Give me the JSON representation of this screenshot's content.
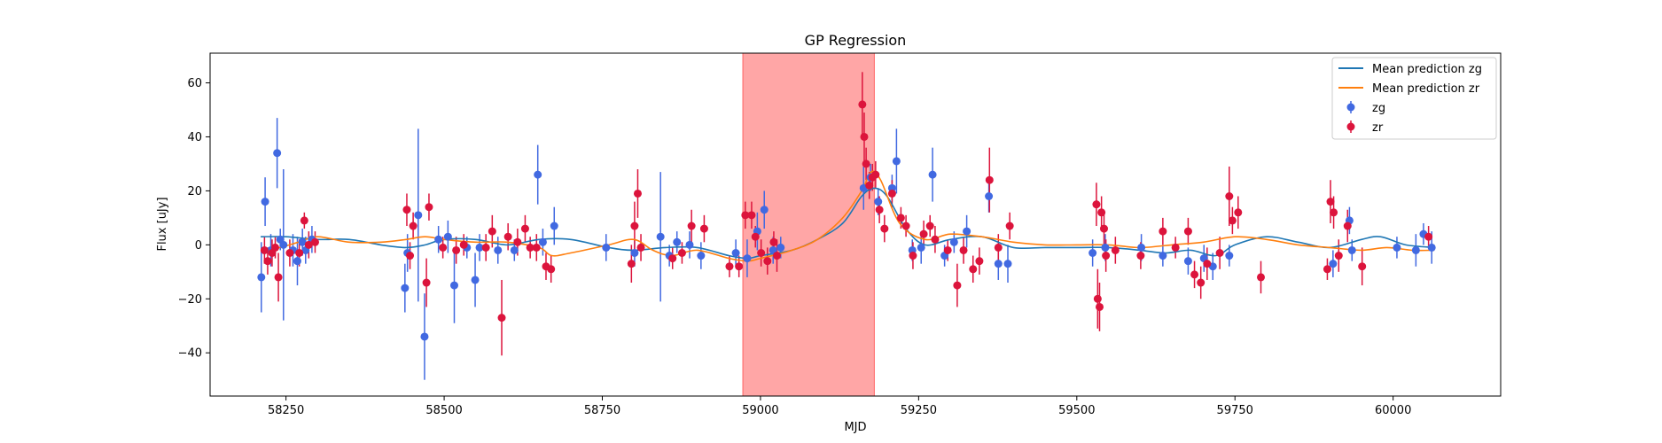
{
  "chart_data": {
    "type": "scatter",
    "title": "GP Regression",
    "xlabel": "MJD",
    "ylabel": "Flux [uJy]",
    "xlim": [
      58130,
      60170
    ],
    "ylim": [
      -56,
      71
    ],
    "xticks": [
      58250,
      58500,
      58750,
      59000,
      59250,
      59500,
      59750,
      60000
    ],
    "yticks": [
      -40,
      -20,
      0,
      20,
      40,
      60
    ],
    "grid": false,
    "legend_position": "top-right",
    "shaded_region": {
      "x_start": 58972,
      "x_end": 59180,
      "color": "#ff0000",
      "alpha": 0.35
    },
    "colors": {
      "zg_points": "#4169e1",
      "zr_points": "#dc143c",
      "zg_line": "#1f77b4",
      "zr_line": "#ff7f0e"
    },
    "lines": [
      {
        "name": "Mean prediction zg",
        "color": "#1f77b4",
        "points": [
          [
            58210,
            3
          ],
          [
            58250,
            3
          ],
          [
            58300,
            2
          ],
          [
            58350,
            2
          ],
          [
            58400,
            0
          ],
          [
            58440,
            -1
          ],
          [
            58470,
            0
          ],
          [
            58500,
            2
          ],
          [
            58550,
            2
          ],
          [
            58600,
            0
          ],
          [
            58650,
            2
          ],
          [
            58700,
            2
          ],
          [
            58760,
            -1
          ],
          [
            58800,
            -2
          ],
          [
            58850,
            -1
          ],
          [
            58900,
            -1
          ],
          [
            58950,
            -4
          ],
          [
            58980,
            -5
          ],
          [
            59000,
            -4
          ],
          [
            59050,
            -2
          ],
          [
            59090,
            2
          ],
          [
            59130,
            8
          ],
          [
            59160,
            18
          ],
          [
            59180,
            21
          ],
          [
            59200,
            18
          ],
          [
            59230,
            6
          ],
          [
            59260,
            0
          ],
          [
            59300,
            2
          ],
          [
            59350,
            3
          ],
          [
            59400,
            -1
          ],
          [
            59450,
            -1
          ],
          [
            59500,
            -1
          ],
          [
            59550,
            -1
          ],
          [
            59600,
            -2
          ],
          [
            59640,
            -3
          ],
          [
            59680,
            -2
          ],
          [
            59720,
            -4
          ],
          [
            59750,
            0
          ],
          [
            59800,
            3
          ],
          [
            59850,
            1
          ],
          [
            59900,
            -1
          ],
          [
            59950,
            2
          ],
          [
            59980,
            3
          ],
          [
            60020,
            0
          ],
          [
            60065,
            -1
          ]
        ]
      },
      {
        "name": "Mean prediction zr",
        "color": "#ff7f0e",
        "points": [
          [
            58210,
            -2
          ],
          [
            58240,
            -1
          ],
          [
            58270,
            1
          ],
          [
            58300,
            3
          ],
          [
            58350,
            1
          ],
          [
            58400,
            1
          ],
          [
            58440,
            2
          ],
          [
            58470,
            3
          ],
          [
            58500,
            2
          ],
          [
            58550,
            1
          ],
          [
            58600,
            1
          ],
          [
            58650,
            -1
          ],
          [
            58670,
            -4
          ],
          [
            58700,
            -3
          ],
          [
            58760,
            0
          ],
          [
            58800,
            2
          ],
          [
            58830,
            -2
          ],
          [
            58860,
            -4
          ],
          [
            58900,
            -2
          ],
          [
            58950,
            -5
          ],
          [
            58980,
            -6
          ],
          [
            59000,
            -5
          ],
          [
            59050,
            -2
          ],
          [
            59090,
            2
          ],
          [
            59130,
            10
          ],
          [
            59160,
            20
          ],
          [
            59175,
            27
          ],
          [
            59190,
            24
          ],
          [
            59220,
            8
          ],
          [
            59260,
            2
          ],
          [
            59300,
            4
          ],
          [
            59350,
            3
          ],
          [
            59400,
            1
          ],
          [
            59450,
            0
          ],
          [
            59500,
            0
          ],
          [
            59550,
            0
          ],
          [
            59600,
            -1
          ],
          [
            59650,
            0
          ],
          [
            59700,
            1
          ],
          [
            59750,
            3
          ],
          [
            59800,
            2
          ],
          [
            59850,
            0
          ],
          [
            59900,
            -1
          ],
          [
            59950,
            -2
          ],
          [
            59990,
            -1
          ],
          [
            60030,
            -2
          ],
          [
            60065,
            -2
          ]
        ]
      }
    ],
    "series": [
      {
        "name": "zg",
        "color": "#4169e1",
        "points": [
          [
            58211,
            -12,
            13
          ],
          [
            58217,
            16,
            9
          ],
          [
            58226,
            -2,
            6
          ],
          [
            58236,
            34,
            13
          ],
          [
            58241,
            2,
            4
          ],
          [
            58246,
            0,
            28
          ],
          [
            58261,
            -2,
            6
          ],
          [
            58268,
            -6,
            9
          ],
          [
            58276,
            1,
            5
          ],
          [
            58281,
            -2,
            5
          ],
          [
            58291,
            2,
            5
          ],
          [
            58438,
            -16,
            9
          ],
          [
            58442,
            -3,
            7
          ],
          [
            58459,
            11,
            32
          ],
          [
            58469,
            -34,
            16
          ],
          [
            58491,
            2,
            5
          ],
          [
            58506,
            3,
            6
          ],
          [
            58516,
            -15,
            14
          ],
          [
            58536,
            -1,
            4
          ],
          [
            58549,
            -13,
            10
          ],
          [
            58556,
            -1,
            5
          ],
          [
            58585,
            -2,
            5
          ],
          [
            58611,
            -2,
            4
          ],
          [
            58648,
            26,
            11
          ],
          [
            58656,
            1,
            5
          ],
          [
            58674,
            7,
            7
          ],
          [
            58756,
            -1,
            5
          ],
          [
            58801,
            -3,
            5
          ],
          [
            58842,
            3,
            24
          ],
          [
            58856,
            -4,
            4
          ],
          [
            58868,
            1,
            4
          ],
          [
            58888,
            0,
            5
          ],
          [
            58906,
            -4,
            5
          ],
          [
            58961,
            -3,
            5
          ],
          [
            58979,
            -5,
            7
          ],
          [
            58995,
            5,
            7
          ],
          [
            59006,
            13,
            7
          ],
          [
            59020,
            -2,
            5
          ],
          [
            59032,
            -1,
            4
          ],
          [
            59163,
            21,
            8
          ],
          [
            59174,
            25,
            5
          ],
          [
            59186,
            16,
            5
          ],
          [
            59208,
            21,
            5
          ],
          [
            59215,
            31,
            12
          ],
          [
            59240,
            -2,
            4
          ],
          [
            59254,
            -1,
            6
          ],
          [
            59272,
            26,
            10
          ],
          [
            59291,
            -4,
            4
          ],
          [
            59306,
            1,
            4
          ],
          [
            59326,
            5,
            6
          ],
          [
            59361,
            18,
            6
          ],
          [
            59376,
            -7,
            6
          ],
          [
            59391,
            -7,
            7
          ],
          [
            59525,
            -3,
            5
          ],
          [
            59545,
            -1,
            5
          ],
          [
            59602,
            -1,
            5
          ],
          [
            59636,
            -4,
            4
          ],
          [
            59676,
            -6,
            5
          ],
          [
            59701,
            -5,
            5
          ],
          [
            59715,
            -8,
            5
          ],
          [
            59741,
            -4,
            4
          ],
          [
            59905,
            -7,
            5
          ],
          [
            59931,
            9,
            5
          ],
          [
            59935,
            -2,
            4
          ],
          [
            60006,
            -1,
            4
          ],
          [
            60036,
            -2,
            6
          ],
          [
            60048,
            4,
            4
          ],
          [
            60061,
            -1,
            6
          ]
        ]
      },
      {
        "name": "zr",
        "color": "#dc143c",
        "points": [
          [
            58216,
            -2,
            5
          ],
          [
            58221,
            -6,
            5
          ],
          [
            58228,
            -3,
            5
          ],
          [
            58233,
            -1,
            4
          ],
          [
            58238,
            -12,
            9
          ],
          [
            58256,
            -3,
            5
          ],
          [
            58271,
            -3,
            5
          ],
          [
            58279,
            9,
            3
          ],
          [
            58286,
            0,
            5
          ],
          [
            58296,
            1,
            4
          ],
          [
            58441,
            13,
            6
          ],
          [
            58446,
            -4,
            5
          ],
          [
            58451,
            7,
            5
          ],
          [
            58472,
            -14,
            9
          ],
          [
            58476,
            14,
            5
          ],
          [
            58498,
            -1,
            4
          ],
          [
            58519,
            -2,
            5
          ],
          [
            58531,
            0,
            4
          ],
          [
            58566,
            -1,
            5
          ],
          [
            58576,
            5,
            6
          ],
          [
            58591,
            -27,
            14
          ],
          [
            58601,
            3,
            5
          ],
          [
            58616,
            1,
            5
          ],
          [
            58628,
            6,
            5
          ],
          [
            58636,
            -1,
            4
          ],
          [
            58646,
            -1,
            5
          ],
          [
            58661,
            -8,
            5
          ],
          [
            58669,
            -9,
            5
          ],
          [
            58796,
            -7,
            7
          ],
          [
            58801,
            7,
            9
          ],
          [
            58806,
            19,
            9
          ],
          [
            58811,
            -1,
            5
          ],
          [
            58861,
            -5,
            4
          ],
          [
            58876,
            -3,
            4
          ],
          [
            58891,
            7,
            6
          ],
          [
            58911,
            6,
            5
          ],
          [
            58951,
            -8,
            4
          ],
          [
            58966,
            -8,
            4
          ],
          [
            58976,
            11,
            5
          ],
          [
            58986,
            11,
            5
          ],
          [
            58992,
            3,
            4
          ],
          [
            59001,
            -3,
            5
          ],
          [
            59011,
            -6,
            5
          ],
          [
            59021,
            1,
            4
          ],
          [
            59026,
            -4,
            6
          ],
          [
            59161,
            52,
            12
          ],
          [
            59164,
            40,
            9
          ],
          [
            59167,
            30,
            6
          ],
          [
            59172,
            22,
            5
          ],
          [
            59177,
            25,
            5
          ],
          [
            59182,
            26,
            5
          ],
          [
            59188,
            13,
            5
          ],
          [
            59196,
            6,
            5
          ],
          [
            59208,
            19,
            5
          ],
          [
            59222,
            10,
            4
          ],
          [
            59230,
            7,
            4
          ],
          [
            59241,
            -4,
            5
          ],
          [
            59258,
            4,
            5
          ],
          [
            59268,
            7,
            4
          ],
          [
            59276,
            2,
            5
          ],
          [
            59296,
            -2,
            4
          ],
          [
            59311,
            -15,
            8
          ],
          [
            59321,
            -2,
            5
          ],
          [
            59336,
            -9,
            5
          ],
          [
            59346,
            -6,
            5
          ],
          [
            59362,
            24,
            12
          ],
          [
            59376,
            -1,
            5
          ],
          [
            59394,
            7,
            5
          ],
          [
            59531,
            15,
            8
          ],
          [
            59533,
            -20,
            11
          ],
          [
            59536,
            -23,
            9
          ],
          [
            59539,
            12,
            6
          ],
          [
            59543,
            6,
            6
          ],
          [
            59546,
            -4,
            6
          ],
          [
            59561,
            -2,
            5
          ],
          [
            59601,
            -4,
            5
          ],
          [
            59636,
            5,
            5
          ],
          [
            59656,
            -1,
            4
          ],
          [
            59676,
            5,
            5
          ],
          [
            59686,
            -11,
            5
          ],
          [
            59696,
            -14,
            6
          ],
          [
            59706,
            -7,
            6
          ],
          [
            59726,
            -3,
            6
          ],
          [
            59741,
            18,
            11
          ],
          [
            59746,
            9,
            5
          ],
          [
            59755,
            12,
            6
          ],
          [
            59791,
            -12,
            6
          ],
          [
            59896,
            -9,
            4
          ],
          [
            59901,
            16,
            8
          ],
          [
            59906,
            12,
            6
          ],
          [
            59914,
            -4,
            6
          ],
          [
            59928,
            7,
            6
          ],
          [
            59951,
            -8,
            7
          ],
          [
            60056,
            3,
            4
          ]
        ]
      }
    ]
  }
}
